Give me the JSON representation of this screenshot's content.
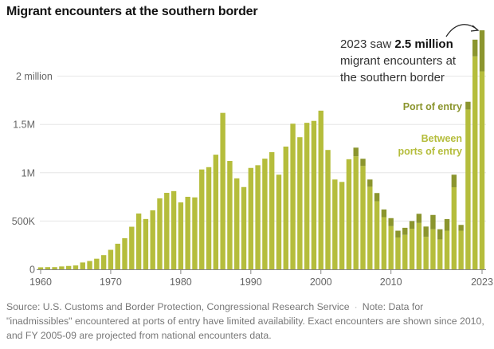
{
  "title": "Migrant encounters at the southern border",
  "annotation": {
    "prefix": "2023 saw ",
    "bold": "2.5 million",
    "line2": "migrant encounters at",
    "line3": "the southern border"
  },
  "legend": {
    "port": "Port of entry",
    "between_1": "Between",
    "between_2": "ports of entry"
  },
  "footer": {
    "source": "Source: U.S. Customs and Border Protection, Congressional Research Service",
    "note": "Note: Data for \"inadmissibles\" encountered at ports of entry have limited availability. Exact encounters are shown since 2010, and FY 2005-09 are projected from national encounters data."
  },
  "colors": {
    "between": "#b5bd3c",
    "port": "#8b952e",
    "grid": "#e6e6e6"
  },
  "chart_data": {
    "type": "bar",
    "stacked": true,
    "title": "Migrant encounters at the southern border",
    "xlabel": "",
    "ylabel": "",
    "ylim": [
      0,
      2500000
    ],
    "grid": true,
    "legend_placement": "right",
    "y_ticks": [
      {
        "value": 0,
        "label": "0"
      },
      {
        "value": 500000,
        "label": "500K"
      },
      {
        "value": 1000000,
        "label": "1M"
      },
      {
        "value": 1500000,
        "label": "1.5M"
      },
      {
        "value": 2000000,
        "label": "2 million"
      }
    ],
    "x_ticks": [
      "1960",
      "1970",
      "1980",
      "1990",
      "2000",
      "2010",
      "2023"
    ],
    "categories": [
      1960,
      1961,
      1962,
      1963,
      1964,
      1965,
      1966,
      1967,
      1968,
      1969,
      1970,
      1971,
      1972,
      1973,
      1974,
      1975,
      1976,
      1977,
      1978,
      1979,
      1980,
      1981,
      1982,
      1983,
      1984,
      1985,
      1986,
      1987,
      1988,
      1989,
      1990,
      1991,
      1992,
      1993,
      1994,
      1995,
      1996,
      1997,
      1998,
      1999,
      2000,
      2001,
      2002,
      2003,
      2004,
      2005,
      2006,
      2007,
      2008,
      2009,
      2010,
      2011,
      2012,
      2013,
      2014,
      2015,
      2016,
      2017,
      2018,
      2019,
      2020,
      2021,
      2022,
      2023
    ],
    "series": [
      {
        "name": "Between ports of entry",
        "values": [
          21000,
          23000,
          23000,
          30000,
          35000,
          40000,
          71000,
          86000,
          110000,
          147000,
          202000,
          265000,
          322000,
          441000,
          578000,
          521000,
          611000,
          735000,
          792000,
          810000,
          693000,
          751000,
          745000,
          1034000,
          1058000,
          1187000,
          1620000,
          1122000,
          942000,
          852000,
          1050000,
          1078000,
          1146000,
          1213000,
          980000,
          1271000,
          1508000,
          1368000,
          1517000,
          1537000,
          1643000,
          1236000,
          930000,
          905000,
          1140000,
          1170000,
          1070000,
          855000,
          705000,
          540000,
          447000,
          330000,
          357000,
          420000,
          480000,
          336000,
          415000,
          310000,
          400000,
          850000,
          400000,
          1655000,
          2205000,
          2050000
        ]
      },
      {
        "name": "Port of entry",
        "values": [
          0,
          0,
          0,
          0,
          0,
          0,
          0,
          0,
          0,
          0,
          0,
          0,
          0,
          0,
          0,
          0,
          0,
          0,
          0,
          0,
          0,
          0,
          0,
          0,
          0,
          0,
          0,
          0,
          0,
          0,
          0,
          0,
          0,
          0,
          0,
          0,
          0,
          0,
          0,
          0,
          0,
          0,
          0,
          0,
          0,
          90000,
          75000,
          75000,
          85000,
          80000,
          83000,
          70000,
          73000,
          80000,
          95000,
          107000,
          148000,
          105000,
          120000,
          130000,
          60000,
          80000,
          173000,
          425000
        ]
      }
    ]
  }
}
